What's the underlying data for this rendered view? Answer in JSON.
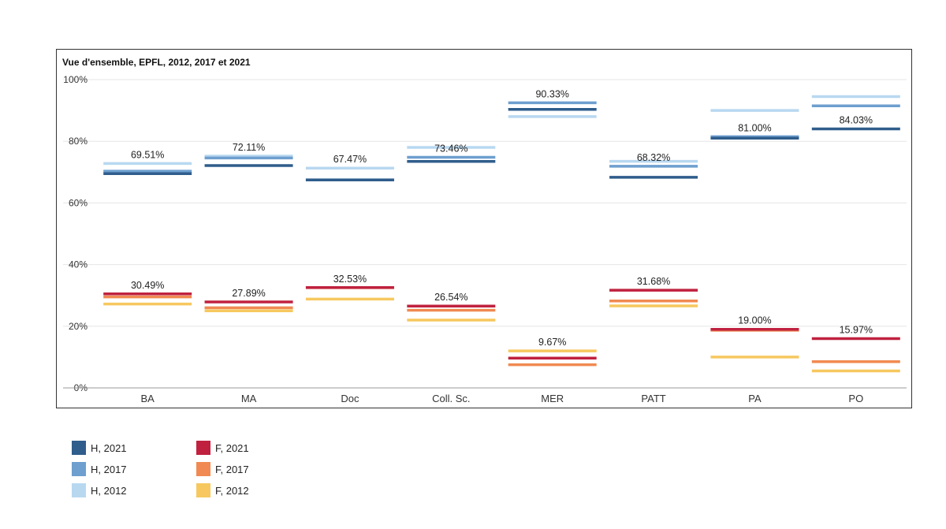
{
  "chart_data": {
    "type": "bar",
    "title": "Vue d'ensemble, EPFL,  2012, 2017 et 2021",
    "xlabel": "",
    "ylabel": "",
    "ylim": [
      0,
      100
    ],
    "yticks": [
      "0%",
      "20%",
      "40%",
      "60%",
      "80%",
      "100%"
    ],
    "yticks_values": [
      0,
      20,
      40,
      60,
      80,
      100
    ],
    "grid": true,
    "legend_position": "bottom-left",
    "categories": [
      "BA",
      "MA",
      "Doc",
      "Coll. Sc.",
      "MER",
      "PATT",
      "PA",
      "PO"
    ],
    "series": [
      {
        "name": "H, 2021",
        "color": "#2f5d8c",
        "values": [
          69.51,
          72.11,
          67.47,
          73.46,
          90.33,
          68.32,
          81.0,
          84.03
        ]
      },
      {
        "name": "H, 2017",
        "color": "#6e9fcf",
        "values": [
          70.3,
          74.6,
          67.5,
          74.8,
          92.5,
          71.9,
          81.5,
          91.5
        ]
      },
      {
        "name": "H, 2012",
        "color": "#b8d8f0",
        "values": [
          72.8,
          75.2,
          71.3,
          78.0,
          88.0,
          73.5,
          90.0,
          94.5
        ]
      },
      {
        "name": "F, 2021",
        "color": "#c0213f",
        "values": [
          30.49,
          27.89,
          32.53,
          26.54,
          9.67,
          31.68,
          19.0,
          15.97
        ]
      },
      {
        "name": "F, 2017",
        "color": "#f08a52",
        "values": [
          29.5,
          26.0,
          32.5,
          25.2,
          7.5,
          28.2,
          18.7,
          8.5
        ]
      },
      {
        "name": "F, 2012",
        "color": "#f6c85f",
        "values": [
          27.2,
          25.0,
          28.8,
          22.0,
          12.0,
          26.6,
          10.0,
          5.5
        ]
      }
    ],
    "labels": [
      {
        "category": "BA",
        "series": "H, 2021",
        "text": "69.51%"
      },
      {
        "category": "MA",
        "series": "H, 2021",
        "text": "72.11%"
      },
      {
        "category": "Doc",
        "series": "H, 2021",
        "text": "67.47%"
      },
      {
        "category": "Coll. Sc.",
        "series": "H, 2021",
        "text": "73.46%"
      },
      {
        "category": "MER",
        "series": "H, 2021",
        "text": "90.33%"
      },
      {
        "category": "PATT",
        "series": "H, 2021",
        "text": "68.32%"
      },
      {
        "category": "PA",
        "series": "H, 2021",
        "text": "81.00%"
      },
      {
        "category": "PO",
        "series": "H, 2021",
        "text": "84.03%"
      },
      {
        "category": "BA",
        "series": "F, 2021",
        "text": "30.49%"
      },
      {
        "category": "MA",
        "series": "F, 2021",
        "text": "27.89%"
      },
      {
        "category": "Doc",
        "series": "F, 2021",
        "text": "32.53%"
      },
      {
        "category": "Coll. Sc.",
        "series": "F, 2021",
        "text": "26.54%"
      },
      {
        "category": "MER",
        "series": "F, 2021",
        "text": "9.67%"
      },
      {
        "category": "PATT",
        "series": "F, 2021",
        "text": "31.68%"
      },
      {
        "category": "PA",
        "series": "F, 2021",
        "text": "19.00%"
      },
      {
        "category": "PO",
        "series": "F, 2021",
        "text": "15.97%"
      }
    ]
  }
}
